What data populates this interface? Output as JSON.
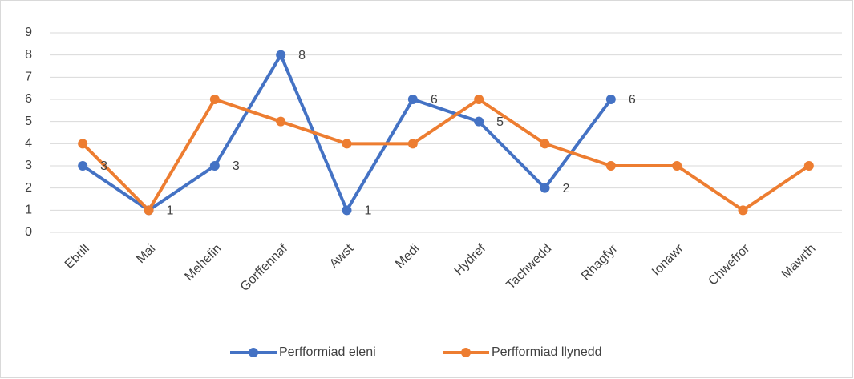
{
  "chart_data": {
    "type": "line",
    "categories": [
      "Ebrill",
      "Mai",
      "Mehefin",
      "Gorffennaf",
      "Awst",
      "Medi",
      "Hydref",
      "Tachwedd",
      "Rhagfyr",
      "Ionawr",
      "Chwefror",
      "Mawrth"
    ],
    "series": [
      {
        "name": "Perfformiad eleni",
        "color": "#4472c4",
        "values": [
          3,
          1,
          3,
          8,
          1,
          6,
          5,
          2,
          6,
          null,
          null,
          null
        ],
        "data_labels": true
      },
      {
        "name": "Perfformiad llynedd",
        "color": "#ed7d31",
        "values": [
          4,
          1,
          6,
          5,
          4,
          4,
          6,
          4,
          3,
          3,
          1,
          3
        ],
        "data_labels": false
      }
    ],
    "ylim": [
      0,
      9
    ],
    "yticks": [
      0,
      1,
      2,
      3,
      4,
      5,
      6,
      7,
      8,
      9
    ],
    "grid": true,
    "legend": "bottom"
  }
}
